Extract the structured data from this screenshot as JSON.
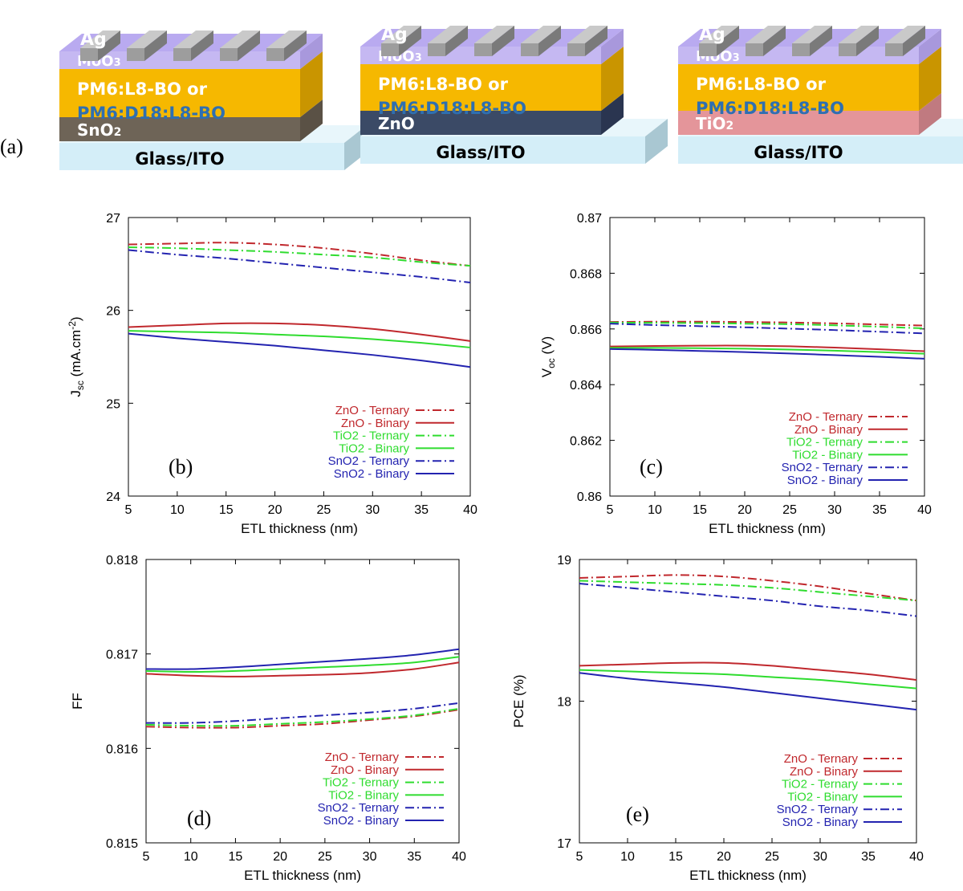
{
  "figure_label": "(a)",
  "stacks": [
    {
      "top": "Ag",
      "moo3": "MoO3",
      "active_line1": "PM6:L8-BO or",
      "active_line2": "PM6:D18:L8-BO",
      "etl": "SnO2",
      "substrate": "Glass/ITO",
      "etl_color": "#6e6457",
      "etl_side": "#5a5145"
    },
    {
      "top": "Ag",
      "moo3": "MoO3",
      "active_line1": "PM6:L8-BO or",
      "active_line2": "PM6:D18:L8-BO",
      "etl": "ZnO",
      "substrate": "Glass/ITO",
      "etl_color": "#3b4a66",
      "etl_side": "#2a3550"
    },
    {
      "top": "Ag",
      "moo3": "MoO3",
      "active_line1": "PM6:L8-BO or",
      "active_line2": "PM6:D18:L8-BO",
      "etl": "TiO2",
      "substrate": "Glass/ITO",
      "etl_color": "#e4959a",
      "etl_side": "#c07a80"
    }
  ],
  "colors": {
    "zno": "#c0282d",
    "tio2": "#2fdc2f",
    "sno2": "#2323b0",
    "silver": "#9d9d9d",
    "moo3": "#c5b8f2",
    "active": "#f6b800",
    "glass": "#d4eef8"
  },
  "chart_data": [
    {
      "id": "b",
      "type": "line",
      "panel_label": "(b)",
      "xlabel": "ETL thickness (nm)",
      "ylabel_main": "J",
      "ylabel_sub": "sc",
      "ylabel_rest": " (mA.cm",
      "ylabel_sup": "-2",
      "ylabel_end": ")",
      "xlim": [
        5,
        40
      ],
      "ylim": [
        24,
        27
      ],
      "xticks": [
        "5",
        "10",
        "15",
        "20",
        "25",
        "30",
        "35",
        "40"
      ],
      "yticks": [
        "24",
        "25",
        "26",
        "27"
      ],
      "x": [
        5,
        10,
        15,
        20,
        25,
        30,
        35,
        40
      ],
      "series": [
        {
          "name": "ZnO - Ternary",
          "color": "zno",
          "dash": true,
          "values": [
            26.71,
            26.72,
            26.73,
            26.71,
            26.67,
            26.61,
            26.54,
            26.48
          ]
        },
        {
          "name": "ZnO - Binary",
          "color": "zno",
          "dash": false,
          "values": [
            25.82,
            25.84,
            25.86,
            25.86,
            25.84,
            25.8,
            25.74,
            25.67
          ]
        },
        {
          "name": "TiO2 - Ternary",
          "color": "tio2",
          "dash": true,
          "values": [
            26.68,
            26.67,
            26.65,
            26.63,
            26.6,
            26.57,
            26.52,
            26.48
          ]
        },
        {
          "name": "TiO2 - Binary",
          "color": "tio2",
          "dash": false,
          "values": [
            25.78,
            25.77,
            25.76,
            25.74,
            25.72,
            25.69,
            25.65,
            25.6
          ]
        },
        {
          "name": "SnO2 - Ternary",
          "color": "sno2",
          "dash": true,
          "values": [
            26.65,
            26.6,
            26.56,
            26.51,
            26.46,
            26.41,
            26.36,
            26.3
          ]
        },
        {
          "name": "SnO2 - Binary",
          "color": "sno2",
          "dash": false,
          "values": [
            25.75,
            25.7,
            25.66,
            25.62,
            25.57,
            25.52,
            25.46,
            25.39
          ]
        }
      ]
    },
    {
      "id": "c",
      "type": "line",
      "panel_label": "(c)",
      "xlabel": "ETL thickness (nm)",
      "ylabel_main": "V",
      "ylabel_sub": "oc",
      "ylabel_rest": " (V)",
      "ylabel_sup": "",
      "ylabel_end": "",
      "xlim": [
        5,
        40
      ],
      "ylim": [
        0.86,
        0.87
      ],
      "xticks": [
        "5",
        "10",
        "15",
        "20",
        "25",
        "30",
        "35",
        "40"
      ],
      "yticks": [
        "0.86",
        "0.862",
        "0.864",
        "0.866",
        "0.868",
        "0.87"
      ],
      "x": [
        5,
        10,
        15,
        20,
        25,
        30,
        35,
        40
      ],
      "series": [
        {
          "name": "ZnO - Ternary",
          "color": "zno",
          "dash": true,
          "values": [
            0.86625,
            0.86626,
            0.86626,
            0.86625,
            0.86623,
            0.8662,
            0.86616,
            0.86612
          ]
        },
        {
          "name": "ZnO - Binary",
          "color": "zno",
          "dash": false,
          "values": [
            0.86537,
            0.86539,
            0.8654,
            0.8654,
            0.86538,
            0.86533,
            0.86527,
            0.8652
          ]
        },
        {
          "name": "TiO2 - Ternary",
          "color": "tio2",
          "dash": true,
          "values": [
            0.86623,
            0.86622,
            0.86621,
            0.86619,
            0.86617,
            0.86613,
            0.86608,
            0.86602
          ]
        },
        {
          "name": "TiO2 - Binary",
          "color": "tio2",
          "dash": false,
          "values": [
            0.86532,
            0.86532,
            0.86531,
            0.86529,
            0.86526,
            0.86522,
            0.86517,
            0.86511
          ]
        },
        {
          "name": "SnO2 - Ternary",
          "color": "sno2",
          "dash": true,
          "values": [
            0.86619,
            0.86614,
            0.8661,
            0.86606,
            0.86601,
            0.86596,
            0.8659,
            0.86584
          ]
        },
        {
          "name": "SnO2 - Binary",
          "color": "sno2",
          "dash": false,
          "values": [
            0.86528,
            0.86525,
            0.86521,
            0.86517,
            0.86512,
            0.86506,
            0.865,
            0.86493
          ]
        }
      ]
    },
    {
      "id": "d",
      "type": "line",
      "panel_label": "(d)",
      "xlabel": "ETL thickness (nm)",
      "ylabel_main": "FF",
      "ylabel_sub": "",
      "ylabel_rest": "",
      "ylabel_sup": "",
      "ylabel_end": "",
      "xlim": [
        5,
        40
      ],
      "ylim": [
        0.815,
        0.818
      ],
      "xticks": [
        "5",
        "10",
        "15",
        "20",
        "25",
        "30",
        "35",
        "40"
      ],
      "yticks": [
        "0.815",
        "0.816",
        "0.817",
        "0.818"
      ],
      "x": [
        5,
        10,
        15,
        20,
        25,
        30,
        35,
        40
      ],
      "series": [
        {
          "name": "ZnO - Ternary",
          "color": "zno",
          "dash": true,
          "values": [
            0.81623,
            0.81622,
            0.81622,
            0.81624,
            0.81626,
            0.8163,
            0.81634,
            0.81641
          ]
        },
        {
          "name": "ZnO - Binary",
          "color": "zno",
          "dash": false,
          "values": [
            0.81679,
            0.81677,
            0.81676,
            0.81677,
            0.81678,
            0.8168,
            0.81684,
            0.81691
          ]
        },
        {
          "name": "TiO2 - Ternary",
          "color": "tio2",
          "dash": true,
          "values": [
            0.81625,
            0.81624,
            0.81624,
            0.81626,
            0.81628,
            0.81631,
            0.81635,
            0.81642
          ]
        },
        {
          "name": "TiO2 - Binary",
          "color": "tio2",
          "dash": false,
          "values": [
            0.81682,
            0.81681,
            0.81682,
            0.81684,
            0.81686,
            0.81688,
            0.81691,
            0.81697
          ]
        },
        {
          "name": "SnO2 - Ternary",
          "color": "sno2",
          "dash": true,
          "values": [
            0.81627,
            0.81627,
            0.81629,
            0.81632,
            0.81635,
            0.81638,
            0.81642,
            0.81648
          ]
        },
        {
          "name": "SnO2 - Binary",
          "color": "sno2",
          "dash": false,
          "values": [
            0.81684,
            0.81684,
            0.81686,
            0.81689,
            0.81692,
            0.81695,
            0.81699,
            0.81705
          ]
        }
      ]
    },
    {
      "id": "e",
      "type": "line",
      "panel_label": "(e)",
      "xlabel": "ETL thickness (nm)",
      "ylabel_main": "PCE (%)",
      "ylabel_sub": "",
      "ylabel_rest": "",
      "ylabel_sup": "",
      "ylabel_end": "",
      "xlim": [
        5,
        40
      ],
      "ylim": [
        17,
        19
      ],
      "xticks": [
        "5",
        "10",
        "15",
        "20",
        "25",
        "30",
        "35",
        "40"
      ],
      "yticks": [
        "17",
        "18",
        "19"
      ],
      "x": [
        5,
        10,
        15,
        20,
        25,
        30,
        35,
        40
      ],
      "series": [
        {
          "name": "ZnO - Ternary",
          "color": "zno",
          "dash": true,
          "values": [
            18.87,
            18.88,
            18.89,
            18.88,
            18.85,
            18.81,
            18.76,
            18.71
          ]
        },
        {
          "name": "ZnO - Binary",
          "color": "zno",
          "dash": false,
          "values": [
            18.25,
            18.26,
            18.27,
            18.27,
            18.25,
            18.22,
            18.19,
            18.15
          ]
        },
        {
          "name": "TiO2 - Ternary",
          "color": "tio2",
          "dash": true,
          "values": [
            18.85,
            18.84,
            18.83,
            18.82,
            18.8,
            18.77,
            18.74,
            18.71
          ]
        },
        {
          "name": "TiO2 - Binary",
          "color": "tio2",
          "dash": false,
          "values": [
            18.22,
            18.21,
            18.2,
            18.19,
            18.17,
            18.15,
            18.12,
            18.09
          ]
        },
        {
          "name": "SnO2 - Ternary",
          "color": "sno2",
          "dash": true,
          "values": [
            18.83,
            18.8,
            18.77,
            18.74,
            18.71,
            18.67,
            18.64,
            18.6
          ]
        },
        {
          "name": "SnO2 - Binary",
          "color": "sno2",
          "dash": false,
          "values": [
            18.2,
            18.16,
            18.13,
            18.1,
            18.06,
            18.02,
            17.98,
            17.94
          ]
        }
      ]
    }
  ]
}
